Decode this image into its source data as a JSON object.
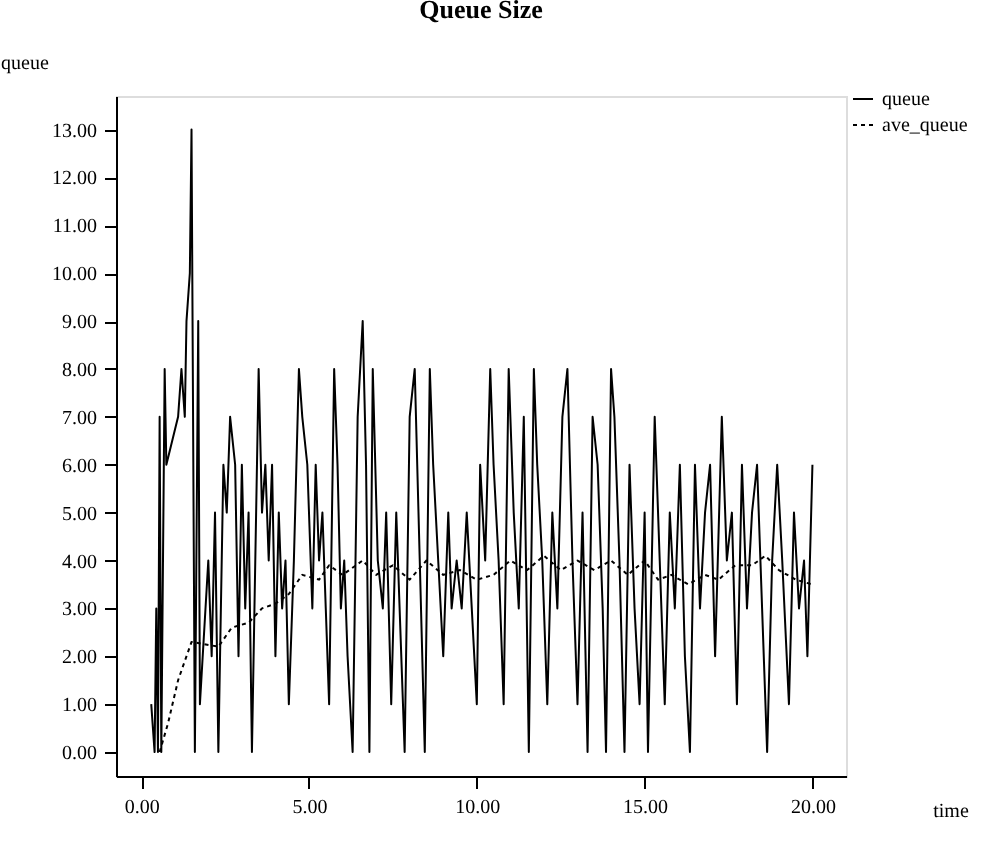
{
  "chart_data": {
    "type": "line",
    "title": "Queue Size",
    "xlabel": "time",
    "ylabel": "queue",
    "xlim": [
      -0.75,
      21.0
    ],
    "ylim": [
      -0.5,
      13.7
    ],
    "xticks": [
      {
        "value": 0,
        "label": "0.00"
      },
      {
        "value": 5,
        "label": "5.00"
      },
      {
        "value": 10,
        "label": "10.00"
      },
      {
        "value": 15,
        "label": "15.00"
      },
      {
        "value": 20,
        "label": "20.00"
      }
    ],
    "yticks": [
      {
        "value": 0,
        "label": "0.00"
      },
      {
        "value": 1,
        "label": "1.00"
      },
      {
        "value": 2,
        "label": "2.00"
      },
      {
        "value": 3,
        "label": "3.00"
      },
      {
        "value": 4,
        "label": "4.00"
      },
      {
        "value": 5,
        "label": "5.00"
      },
      {
        "value": 6,
        "label": "6.00"
      },
      {
        "value": 7,
        "label": "7.00"
      },
      {
        "value": 8,
        "label": "8.00"
      },
      {
        "value": 9,
        "label": "9.00"
      },
      {
        "value": 10,
        "label": "10.00"
      },
      {
        "value": 11,
        "label": "11.00"
      },
      {
        "value": 12,
        "label": "12.00"
      },
      {
        "value": 13,
        "label": "13.00"
      }
    ],
    "grid": false,
    "legend": "top right",
    "marker": "none",
    "series": [
      {
        "name": "queue",
        "color": "#000000",
        "line_style": "solid",
        "x": [
          0.3,
          0.4,
          0.45,
          0.5,
          0.55,
          0.6,
          0.7,
          0.75,
          1.1,
          1.2,
          1.3,
          1.35,
          1.45,
          1.5,
          1.6,
          1.7,
          1.75,
          2.0,
          2.1,
          2.2,
          2.3,
          2.45,
          2.55,
          2.65,
          2.8,
          2.9,
          3.0,
          3.1,
          3.2,
          3.3,
          3.5,
          3.6,
          3.7,
          3.8,
          3.9,
          4.0,
          4.1,
          4.2,
          4.3,
          4.4,
          4.55,
          4.7,
          4.8,
          4.95,
          5.1,
          5.2,
          5.3,
          5.4,
          5.5,
          5.6,
          5.75,
          5.85,
          5.95,
          6.05,
          6.15,
          6.3,
          6.45,
          6.6,
          6.7,
          6.8,
          6.9,
          7.05,
          7.2,
          7.3,
          7.45,
          7.6,
          7.7,
          7.85,
          8.0,
          8.15,
          8.3,
          8.45,
          8.6,
          8.7,
          8.85,
          9.0,
          9.15,
          9.25,
          9.4,
          9.55,
          9.7,
          9.85,
          10.0,
          10.1,
          10.25,
          10.4,
          10.5,
          10.65,
          10.8,
          10.95,
          11.1,
          11.25,
          11.4,
          11.55,
          11.7,
          11.8,
          11.95,
          12.1,
          12.25,
          12.4,
          12.55,
          12.7,
          12.85,
          13.0,
          13.15,
          13.3,
          13.45,
          13.6,
          13.75,
          13.85,
          14.0,
          14.1,
          14.25,
          14.4,
          14.55,
          14.7,
          14.85,
          15.0,
          15.1,
          15.3,
          15.45,
          15.6,
          15.75,
          15.9,
          16.05,
          16.2,
          16.35,
          16.5,
          16.65,
          16.8,
          16.95,
          17.1,
          17.3,
          17.45,
          17.6,
          17.75,
          17.9,
          18.05,
          18.2,
          18.35,
          18.5,
          18.65,
          18.8,
          18.95,
          19.1,
          19.3,
          19.45,
          19.6,
          19.75,
          19.85,
          20.0
        ],
        "values": [
          1,
          0,
          3,
          0,
          7,
          0,
          8,
          6,
          7,
          8,
          7,
          9,
          10,
          13,
          0,
          9,
          1,
          4,
          2,
          5,
          0,
          6,
          5,
          7,
          6,
          2,
          6,
          3,
          5,
          0,
          8,
          5,
          6,
          4,
          6,
          2,
          5,
          3,
          4,
          1,
          4,
          8,
          7,
          6,
          3,
          6,
          4,
          5,
          3,
          1,
          8,
          6,
          3,
          4,
          2,
          0,
          7,
          9,
          6,
          0,
          8,
          4,
          3,
          5,
          1,
          5,
          3,
          0,
          7,
          8,
          4,
          0,
          8,
          6,
          4,
          2,
          5,
          3,
          4,
          3,
          5,
          3,
          1,
          6,
          4,
          8,
          6,
          4,
          1,
          8,
          5,
          3,
          7,
          0,
          8,
          6,
          4,
          1,
          5,
          3,
          7,
          8,
          4,
          1,
          5,
          0,
          7,
          6,
          3,
          0,
          8,
          7,
          4,
          0,
          6,
          3,
          1,
          5,
          0,
          7,
          4,
          1,
          5,
          3,
          6,
          2,
          0,
          6,
          3,
          5,
          6,
          2,
          7,
          4,
          5,
          1,
          6,
          3,
          5,
          6,
          3,
          0,
          4,
          6,
          4,
          1,
          5,
          3,
          4,
          2,
          6
        ]
      },
      {
        "name": "ave_queue",
        "color": "#000000",
        "line_style": "dotted",
        "x": [
          0.55,
          0.8,
          1.1,
          1.5,
          2.3,
          2.7,
          3.2,
          3.6,
          4.0,
          4.4,
          4.8,
          5.3,
          5.6,
          6.0,
          6.6,
          7.0,
          7.5,
          8.0,
          8.5,
          9.0,
          9.5,
          10.0,
          10.5,
          11.0,
          11.5,
          12.0,
          12.5,
          13.0,
          13.5,
          14.0,
          14.5,
          15.0,
          15.4,
          15.8,
          16.3,
          16.8,
          17.2,
          17.7,
          18.2,
          18.6,
          19.0,
          19.5,
          20.0
        ],
        "values": [
          0,
          0.6,
          1.5,
          2.3,
          2.2,
          2.6,
          2.7,
          3.0,
          3.1,
          3.3,
          3.7,
          3.6,
          3.9,
          3.7,
          4.0,
          3.7,
          3.9,
          3.6,
          4.0,
          3.7,
          3.8,
          3.6,
          3.7,
          4.0,
          3.8,
          4.1,
          3.8,
          4.0,
          3.8,
          4.0,
          3.7,
          4.0,
          3.6,
          3.7,
          3.5,
          3.7,
          3.6,
          3.9,
          3.9,
          4.1,
          3.8,
          3.6,
          3.5
        ]
      }
    ]
  }
}
